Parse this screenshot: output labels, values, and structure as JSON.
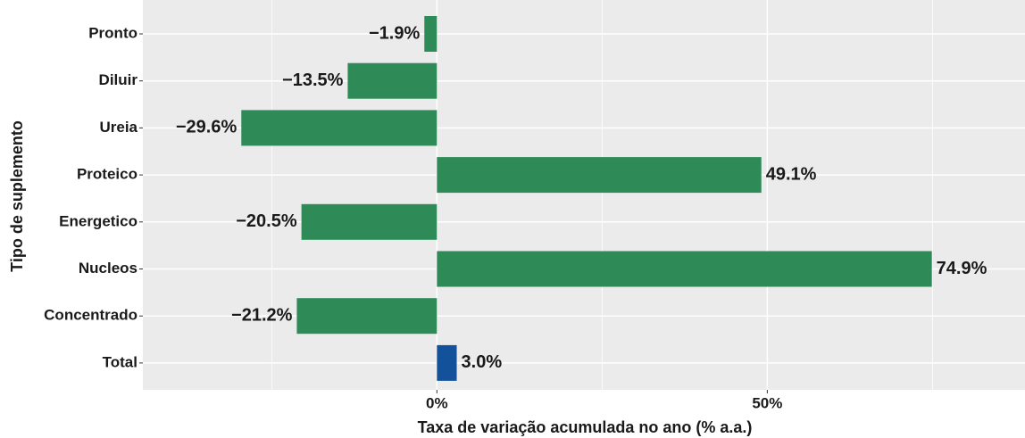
{
  "chart_data": {
    "type": "barh",
    "xlabel": "Taxa de variação acumulada no ano (% a.a.)",
    "ylabel": "Tipo de suplemento",
    "categories": [
      "Pronto",
      "Diluir",
      "Ureia",
      "Proteico",
      "Energetico",
      "Nucleos",
      "Concentrado",
      "Total"
    ],
    "values": [
      -1.9,
      -13.5,
      -29.6,
      49.1,
      -20.5,
      74.9,
      -21.2,
      3.0
    ],
    "value_labels": [
      "−1.9%",
      "−13.5%",
      "−29.6%",
      "49.1%",
      "−20.5%",
      "74.9%",
      "−21.2%",
      "3.0%"
    ],
    "colors": [
      "#2e8b57",
      "#2e8b57",
      "#2e8b57",
      "#2e8b57",
      "#2e8b57",
      "#2e8b57",
      "#2e8b57",
      "#13519a"
    ],
    "xlim": [
      -44.5,
      89.0
    ],
    "xticks": [
      {
        "value": 0,
        "label": "0%"
      },
      {
        "value": 50,
        "label": "50%"
      }
    ],
    "minor_xticks": [
      -25,
      25,
      75
    ],
    "grid": true
  }
}
